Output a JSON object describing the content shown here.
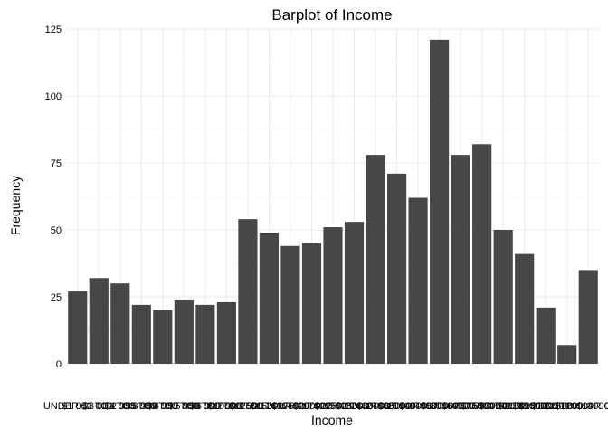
{
  "chart_data": {
    "type": "bar",
    "title": "Barplot of Income",
    "xlabel": "Income",
    "ylabel": "Frequency",
    "ylim": [
      0,
      125
    ],
    "yticks": [
      0,
      25,
      50,
      75,
      100,
      125
    ],
    "grid": true,
    "bar_color": "#474747",
    "categories": [
      "UNDER $1 000",
      "$1 000 TO 2 999",
      "$3 000 TO 3 999",
      "$4 000 TO 4 999",
      "$5 000 TO 5 999",
      "$6 000 TO 6 999",
      "$7 000 TO 7 999",
      "$8 000 TO 9 999",
      "$10000 TO 12499",
      "$12500 TO 14999",
      "$15000 TO 17499",
      "$17500 TO 19999",
      "$20000 TO 22499",
      "$22500 TO 24999",
      "$25000 TO 29999",
      "$30000 TO 34999",
      "$35000 TO 39999",
      "$40000 TO 49999",
      "$50000 TO 59999",
      "$60000 TO 74999",
      "$75000 TO $89999",
      "$90000 TO $109999",
      "$110000 TO $129999",
      "$130000 TO $149999",
      "$150000 OR OVER"
    ],
    "values": [
      27,
      32,
      30,
      22,
      20,
      24,
      22,
      23,
      54,
      49,
      44,
      45,
      51,
      53,
      78,
      71,
      62,
      121,
      78,
      82,
      50,
      41,
      21,
      7,
      35
    ]
  }
}
